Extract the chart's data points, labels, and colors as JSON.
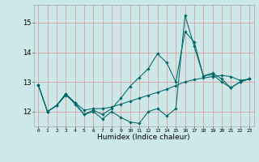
{
  "title": "",
  "xlabel": "Humidex (Indice chaleur)",
  "ylabel": "",
  "bg_color": "#cce8e8",
  "grid_color": "#dda0a0",
  "line_color": "#006868",
  "ylim": [
    11.5,
    15.6
  ],
  "xlim": [
    -0.5,
    23.5
  ],
  "yticks": [
    12,
    13,
    14,
    15
  ],
  "xticks": [
    0,
    1,
    2,
    3,
    4,
    5,
    6,
    7,
    8,
    9,
    10,
    11,
    12,
    13,
    14,
    15,
    16,
    17,
    18,
    19,
    20,
    21,
    22,
    23
  ],
  "series1": [
    12.9,
    12.0,
    12.2,
    12.6,
    12.25,
    11.9,
    12.0,
    11.75,
    12.0,
    11.8,
    11.65,
    11.6,
    12.0,
    12.1,
    11.85,
    12.1,
    15.25,
    14.2,
    13.2,
    13.25,
    13.0,
    12.8,
    13.0,
    13.1
  ],
  "series2": [
    12.9,
    12.0,
    12.2,
    12.55,
    12.3,
    12.05,
    12.1,
    12.1,
    12.15,
    12.25,
    12.35,
    12.45,
    12.55,
    12.65,
    12.75,
    12.88,
    13.0,
    13.08,
    13.13,
    13.18,
    13.22,
    13.18,
    13.05,
    13.1
  ],
  "series3": [
    12.9,
    12.0,
    12.2,
    12.6,
    12.3,
    11.9,
    12.05,
    11.9,
    12.1,
    12.45,
    12.85,
    13.15,
    13.45,
    13.95,
    13.65,
    13.0,
    14.7,
    14.35,
    13.2,
    13.3,
    13.1,
    12.8,
    13.0,
    13.1
  ]
}
